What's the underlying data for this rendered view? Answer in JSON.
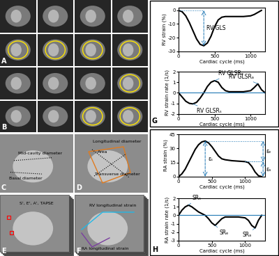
{
  "panels": [
    {
      "label": "A"
    },
    {
      "label": "B"
    },
    {
      "label": "C",
      "texts": [
        "Mid-cavity diameter",
        "Basal diameter"
      ]
    },
    {
      "label": "D",
      "texts": [
        "Area",
        "Longitudinal diameter",
        "Transverse diameter"
      ]
    },
    {
      "label": "E",
      "texts": [
        "S', E', A', TAPSE"
      ]
    },
    {
      "label": "F",
      "texts": [
        "RV longitudinal strain",
        "RA longitudinal strain"
      ]
    },
    {
      "label": "G"
    },
    {
      "label": "H"
    }
  ],
  "chart_data": [
    {
      "type": "line",
      "panel": "G",
      "y_label": "RV strain (%)",
      "x_label": "Cardiac cycle (ms)",
      "color": "#000000",
      "x": [
        0,
        50,
        100,
        150,
        200,
        250,
        300,
        350,
        400,
        450,
        500,
        550,
        600,
        650,
        700,
        800,
        900,
        1000,
        1050,
        1100,
        1150
      ],
      "values": [
        0,
        -1,
        -4,
        -9,
        -15,
        -21,
        -25,
        -26,
        -24,
        -19,
        -12,
        -7,
        -5,
        -4.5,
        -4.5,
        -4.5,
        -4.5,
        -4,
        -3,
        -1.5,
        0
      ],
      "xlim": [
        0,
        1200
      ],
      "xticks": [
        0,
        500,
        1000
      ],
      "ylim": [
        -30,
        2
      ],
      "yticks": [
        -30,
        -20,
        -10,
        0
      ],
      "annotations": [
        {
          "text": "RV GLS",
          "x": 350,
          "span": [
            0,
            350
          ]
        }
      ]
    },
    {
      "type": "line",
      "panel": "G",
      "y_label": "RV strain rate (1/s)",
      "x_label": "Cardiac cycle (ms)",
      "color": "#000000",
      "x": [
        0,
        50,
        100,
        150,
        200,
        250,
        300,
        350,
        400,
        450,
        500,
        550,
        600,
        650,
        700,
        800,
        900,
        1000,
        1050,
        1100,
        1150,
        1200
      ],
      "values": [
        0,
        -0.4,
        -0.8,
        -1.0,
        -1.05,
        -0.9,
        -0.5,
        0,
        0.6,
        1.0,
        1.15,
        1.0,
        0.5,
        0.2,
        0.1,
        0.1,
        0.1,
        0.2,
        0.5,
        0.85,
        0.3,
        0
      ],
      "xlim": [
        0,
        1200
      ],
      "xticks": [
        0,
        500,
        1000
      ],
      "ylim": [
        -2,
        2
      ],
      "yticks": [
        -2,
        -1,
        0,
        1,
        2
      ],
      "reference_lines": [
        {
          "y": 0
        }
      ],
      "annotations": [
        {
          "text": "RV GLSRₛ",
          "x": 200
        },
        {
          "text": "RV GLSRₑ",
          "x": 500
        },
        {
          "text": "RV GLSRₐ",
          "x": 1100
        }
      ]
    },
    {
      "type": "line",
      "panel": "H",
      "y_label": "RA strain (%)",
      "x_label": "Cardiac cycle (ms)",
      "color": "#000000",
      "x": [
        0,
        50,
        100,
        150,
        200,
        250,
        300,
        350,
        400,
        450,
        500,
        550,
        600,
        650,
        700,
        750,
        800,
        900,
        1000,
        1050,
        1100,
        1150,
        1200,
        1250
      ],
      "values": [
        0,
        3,
        8,
        15,
        22,
        29,
        34,
        37,
        38,
        36,
        32,
        27,
        22,
        19,
        18,
        17.5,
        17,
        16.5,
        16,
        15,
        11,
        5,
        1,
        0
      ],
      "xlim": [
        0,
        1300
      ],
      "xticks": [
        0,
        500,
        1000
      ],
      "ylim": [
        0,
        45
      ],
      "yticks": [
        0,
        15,
        30,
        45
      ],
      "annotations": [
        {
          "text": "εₛ",
          "x": 400,
          "span": [
            0,
            400
          ]
        },
        {
          "text": "εₑ",
          "x": 1270,
          "span": [
            400,
            1000
          ]
        },
        {
          "text": "εₐ",
          "x": 1270,
          "span": [
            1000,
            0
          ]
        }
      ]
    },
    {
      "type": "line",
      "panel": "H",
      "y_label": "RA strain rate (1/s)",
      "x_label": "Cardiac cycle (ms)",
      "color": "#000000",
      "x": [
        0,
        50,
        100,
        150,
        200,
        250,
        300,
        350,
        400,
        450,
        500,
        550,
        600,
        650,
        700,
        800,
        900,
        1000,
        1050,
        1100,
        1150,
        1200,
        1250
      ],
      "values": [
        0,
        0.6,
        1.0,
        1.2,
        1.0,
        0.7,
        0.4,
        0.2,
        0,
        -0.4,
        -0.9,
        -1.2,
        -0.8,
        -0.4,
        -0.2,
        -0.2,
        -0.2,
        -0.3,
        -0.6,
        -1.2,
        -1.5,
        -0.6,
        0
      ],
      "xlim": [
        0,
        1300
      ],
      "xticks": [
        0,
        500,
        1000
      ],
      "ylim": [
        -3,
        2
      ],
      "yticks": [
        -3,
        -2,
        -1,
        0,
        1,
        2
      ],
      "reference_lines": [
        {
          "y": 0
        }
      ],
      "annotations": [
        {
          "text": "SRₛ",
          "x": 150
        },
        {
          "text": "SRₑ",
          "x": 550
        },
        {
          "text": "SRₐ",
          "x": 1150
        }
      ]
    }
  ]
}
